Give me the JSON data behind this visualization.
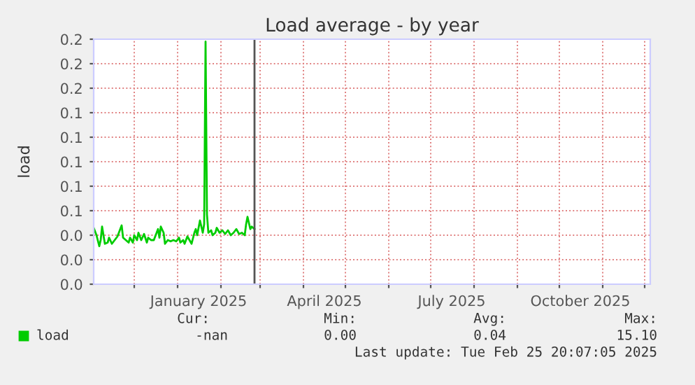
{
  "chart_data": {
    "type": "line",
    "title": "Load average - by year",
    "ylabel": "load",
    "x": [
      "2024-11-02",
      "2024-11-04",
      "2024-11-06",
      "2024-11-07",
      "2024-11-08",
      "2024-11-10",
      "2024-11-12",
      "2024-11-13",
      "2024-11-15",
      "2024-11-17",
      "2024-11-19",
      "2024-11-20",
      "2024-11-22",
      "2024-11-23",
      "2024-11-25",
      "2024-11-27",
      "2024-11-28",
      "2024-11-30",
      "2024-12-01",
      "2024-12-03",
      "2024-12-04",
      "2024-12-06",
      "2024-12-08",
      "2024-12-10",
      "2024-12-11",
      "2024-12-13",
      "2024-12-15",
      "2024-12-17",
      "2024-12-18",
      "2024-12-19",
      "2024-12-20",
      "2024-12-22",
      "2024-12-23",
      "2024-12-25",
      "2024-12-27",
      "2024-12-29",
      "2024-12-31",
      "2025-01-02",
      "2025-01-03",
      "2025-01-05",
      "2025-01-06",
      "2025-01-08",
      "2025-01-10",
      "2025-01-11",
      "2025-01-13",
      "2025-01-14",
      "2025-01-15",
      "2025-01-17",
      "2025-01-18",
      "2025-01-19",
      "2025-01-20",
      "2025-01-21",
      "2025-01-22",
      "2025-01-23",
      "2025-01-25",
      "2025-01-26",
      "2025-01-28",
      "2025-01-29",
      "2025-01-31",
      "2025-02-02",
      "2025-02-04",
      "2025-02-06",
      "2025-02-08",
      "2025-02-10",
      "2025-02-12",
      "2025-02-14",
      "2025-02-16",
      "2025-02-18",
      "2025-02-19",
      "2025-02-20",
      "2025-02-22",
      "2025-02-23",
      "2025-02-25"
    ],
    "series": [
      {
        "name": "load",
        "color": "#00cc00",
        "values": [
          0.046,
          0.04,
          0.031,
          0.036,
          0.047,
          0.033,
          0.034,
          0.038,
          0.033,
          0.036,
          0.039,
          0.042,
          0.048,
          0.038,
          0.036,
          0.034,
          0.038,
          0.034,
          0.04,
          0.036,
          0.042,
          0.036,
          0.041,
          0.034,
          0.038,
          0.036,
          0.036,
          0.042,
          0.045,
          0.038,
          0.047,
          0.042,
          0.033,
          0.036,
          0.035,
          0.036,
          0.035,
          0.038,
          0.034,
          0.036,
          0.033,
          0.039,
          0.035,
          0.033,
          0.042,
          0.045,
          0.04,
          0.052,
          0.047,
          0.042,
          0.049,
          0.198,
          0.057,
          0.042,
          0.044,
          0.04,
          0.042,
          0.046,
          0.042,
          0.044,
          0.041,
          0.044,
          0.04,
          0.042,
          0.045,
          0.041,
          0.042,
          0.04,
          0.049,
          0.055,
          0.045,
          0.047,
          0.045
        ]
      }
    ],
    "xlim": [
      "2024-11-02",
      "2025-12-05"
    ],
    "xticks": [
      {
        "value": "2024-12-01",
        "label": null
      },
      {
        "value": "2025-01-01",
        "label": null
      },
      {
        "value": "2025-01-16",
        "label": "January 2025"
      },
      {
        "value": "2025-02-01",
        "label": null
      },
      {
        "value": "2025-03-01",
        "label": null
      },
      {
        "value": "2025-04-01",
        "label": null
      },
      {
        "value": "2025-04-16",
        "label": "April 2025"
      },
      {
        "value": "2025-05-01",
        "label": null
      },
      {
        "value": "2025-06-01",
        "label": null
      },
      {
        "value": "2025-07-01",
        "label": null
      },
      {
        "value": "2025-07-16",
        "label": "July 2025"
      },
      {
        "value": "2025-08-01",
        "label": null
      },
      {
        "value": "2025-09-01",
        "label": null
      },
      {
        "value": "2025-10-01",
        "label": null
      },
      {
        "value": "2025-10-16",
        "label": "October 2025"
      },
      {
        "value": "2025-11-01",
        "label": null
      },
      {
        "value": "2025-12-01",
        "label": null
      }
    ],
    "ylim": [
      0,
      0.2
    ],
    "yticks": [
      {
        "value": 0,
        "label": "0.0"
      },
      {
        "value": 0.02,
        "label": "0.0"
      },
      {
        "value": 0.04,
        "label": "0.0"
      },
      {
        "value": 0.06,
        "label": "0.1"
      },
      {
        "value": 0.08,
        "label": "0.1"
      },
      {
        "value": 0.1,
        "label": "0.1"
      },
      {
        "value": 0.12,
        "label": "0.1"
      },
      {
        "value": 0.14,
        "label": "0.1"
      },
      {
        "value": 0.16,
        "label": "0.2"
      },
      {
        "value": 0.18,
        "label": "0.2"
      },
      {
        "value": 0.2,
        "label": "0.2"
      }
    ],
    "ref_lines": [
      {
        "axis": "x",
        "value": "2025-02-25",
        "color": "#555555"
      }
    ],
    "grid": true,
    "legend": "bottom left",
    "annotations": [
      "Cur:",
      "Min:",
      "Avg:",
      "Max:",
      "-nan",
      "0.00",
      "0.04",
      "15.10",
      "Last update: Tue Feb 25 20:07:05 2025"
    ]
  }
}
